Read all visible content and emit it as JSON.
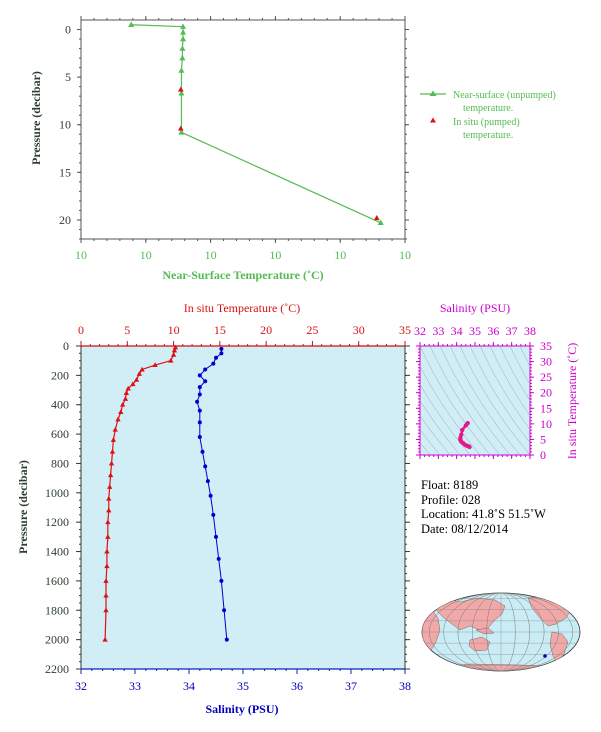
{
  "colors": {
    "near_surface": "#55bb55",
    "in_situ": "#dd1111",
    "salinity": "#0000cc",
    "salinity_axis": "#cc00cc",
    "axis_text": "#2e3e2e",
    "panel_bg": "#d1eef7"
  },
  "top_chart": {
    "ylabel": "Pressure (decibar)",
    "xlabel": "Near-Surface Temperature (˚C)",
    "x_ticks": [
      "10",
      "10",
      "10",
      "10",
      "10",
      "10"
    ],
    "y_ticks": [
      "0",
      "5",
      "10",
      "15",
      "20"
    ],
    "legend_line": "Near-surface (unpumped)",
    "legend_line2": "temperature.",
    "legend_point": "In situ (pumped)",
    "legend_point2": "temperature."
  },
  "bottom_chart": {
    "ylabel": "Pressure (decibar)",
    "top_label": "In situ Temperature (˚C)",
    "bottom_label": "Salinity (PSU)",
    "temp_ticks": [
      "0",
      "5",
      "10",
      "15",
      "20",
      "25",
      "30",
      "35"
    ],
    "sal_ticks": [
      "32",
      "33",
      "34",
      "35",
      "36",
      "37",
      "38"
    ],
    "p_ticks": [
      "0",
      "200",
      "400",
      "600",
      "800",
      "1000",
      "1200",
      "1400",
      "1600",
      "1800",
      "2000",
      "2200"
    ]
  },
  "ts_chart": {
    "top_label": "Salinity (PSU)",
    "side_label": "In situ Temperature (˚C)",
    "sal_ticks": [
      "32",
      "33",
      "34",
      "35",
      "36",
      "37",
      "38"
    ],
    "temp_ticks": [
      "0",
      "5",
      "10",
      "15",
      "20",
      "25",
      "30",
      "35"
    ]
  },
  "info": {
    "float": "Float:  8189",
    "profile": "Profile:  028",
    "location": "Location:  41.8˚S  51.5˚W",
    "date": "Date:  08/12/2014"
  },
  "chart_data": [
    {
      "type": "line",
      "xlabel": "Near-Surface Temperature (˚C)",
      "ylabel": "Pressure (decibar)",
      "ylim": [
        22,
        -1
      ],
      "series": [
        {
          "name": "Near-surface (unpumped) temperature.",
          "x_frac": [
            0.155,
            0.315,
            0.315,
            0.315,
            0.313,
            0.313,
            0.31,
            0.31,
            0.31,
            0.925
          ],
          "y": [
            -0.5,
            -0.3,
            0.3,
            1.0,
            2.0,
            3.0,
            4.3,
            6.7,
            10.8,
            20.3
          ]
        },
        {
          "name": "In situ (pumped) temperature.",
          "x_frac": [
            0.308,
            0.308,
            0.913
          ],
          "y": [
            6.3,
            10.4,
            19.8
          ]
        }
      ]
    },
    {
      "type": "line",
      "xlabel": "Salinity (PSU)",
      "ylabel": "Pressure (decibar)",
      "ylim": [
        2200,
        0
      ],
      "series": [
        {
          "name": "In situ Temperature (˚C)",
          "axis": "temperature",
          "xlim": [
            0,
            35
          ],
          "x": [
            10.2,
            10.1,
            10.0,
            9.7,
            8.0,
            6.6,
            6.3,
            6.0,
            5.6,
            5.1,
            4.9,
            4.8,
            4.5,
            4.3,
            4.0,
            3.7,
            3.5,
            3.4,
            3.3,
            3.2,
            3.1,
            3.0,
            3.0,
            2.9,
            2.9,
            2.8,
            2.8,
            2.7,
            2.7,
            2.7,
            2.6
          ],
          "y": [
            10,
            30,
            60,
            100,
            130,
            160,
            190,
            230,
            260,
            290,
            320,
            360,
            400,
            450,
            500,
            570,
            640,
            720,
            800,
            880,
            960,
            1040,
            1120,
            1200,
            1300,
            1400,
            1500,
            1600,
            1700,
            1800,
            2000
          ]
        },
        {
          "name": "Salinity (PSU)",
          "axis": "salinity",
          "xlim": [
            32,
            38
          ],
          "x": [
            34.6,
            34.6,
            34.5,
            34.45,
            34.3,
            34.2,
            34.3,
            34.2,
            34.2,
            34.15,
            34.2,
            34.2,
            34.2,
            34.25,
            34.3,
            34.35,
            34.4,
            34.45,
            34.5,
            34.55,
            34.6,
            34.65,
            34.7
          ],
          "y": [
            20,
            50,
            80,
            120,
            160,
            200,
            240,
            280,
            330,
            380,
            440,
            520,
            620,
            720,
            820,
            920,
            1020,
            1150,
            1300,
            1450,
            1600,
            1800,
            2000
          ]
        }
      ]
    },
    {
      "type": "scatter",
      "xlabel": "Salinity (PSU)",
      "ylabel": "In situ Temperature (˚C)",
      "xlim": [
        32,
        38
      ],
      "ylim": [
        0,
        35
      ],
      "x": [
        34.6,
        34.5,
        34.3,
        34.25,
        34.2,
        34.2,
        34.25,
        34.35,
        34.45,
        34.55,
        34.65,
        34.7
      ],
      "y": [
        10.2,
        9.5,
        8.0,
        6.5,
        5.5,
        4.9,
        4.3,
        3.8,
        3.3,
        3.0,
        2.8,
        2.6
      ]
    }
  ]
}
